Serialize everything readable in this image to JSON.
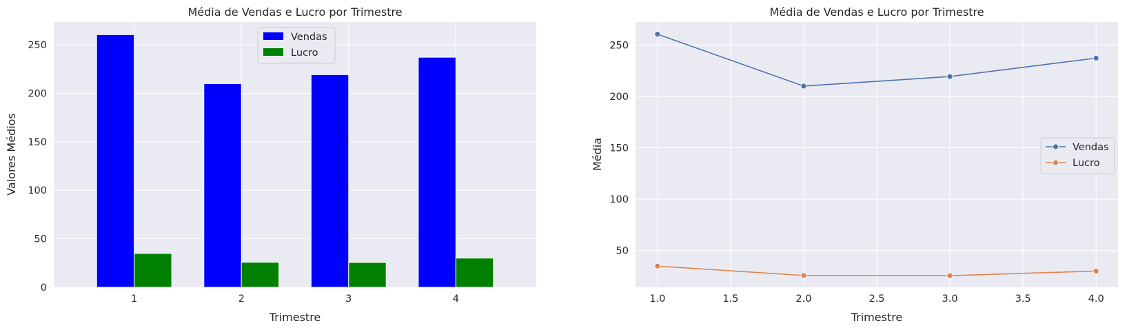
{
  "colors": {
    "axes_background": "#eaeaf2",
    "grid": "#ffffff",
    "text": "#262626"
  },
  "chart_data": [
    {
      "type": "bar",
      "title": "Média de Vendas e Lucro por Trimestre",
      "xlabel": "Trimestre",
      "ylabel": "Valores Médios",
      "categories": [
        "1",
        "2",
        "3",
        "4"
      ],
      "series": [
        {
          "name": "Vendas",
          "color": "#0000ff",
          "values": [
            260.5,
            210.0,
            219.3,
            237.2
          ]
        },
        {
          "name": "Lucro",
          "color": "#008000",
          "values": [
            34.9,
            25.8,
            25.6,
            30.1
          ]
        }
      ],
      "ylim": [
        0,
        273.5
      ],
      "yticks": [
        0,
        50,
        100,
        150,
        200,
        250
      ],
      "grid": true,
      "legend": "top-center"
    },
    {
      "type": "line",
      "title": "Média de Vendas e Lucro por Trimestre",
      "xlabel": "Trimestre",
      "ylabel": "Média",
      "x": [
        1.0,
        2.0,
        3.0,
        4.0
      ],
      "series": [
        {
          "name": "Vendas",
          "color": "#4c72b0",
          "values": [
            260.5,
            210.0,
            219.3,
            237.2
          ]
        },
        {
          "name": "Lucro",
          "color": "#dd8452",
          "values": [
            34.9,
            25.8,
            25.6,
            30.1
          ]
        }
      ],
      "xlim": [
        0.85,
        4.15
      ],
      "xticks": [
        "1.0",
        "1.5",
        "2.0",
        "2.5",
        "3.0",
        "3.5",
        "4.0"
      ],
      "ylim": [
        14.3,
        272.3
      ],
      "yticks": [
        50,
        100,
        150,
        200,
        250
      ],
      "grid": true,
      "legend": "center-right",
      "markers": true
    }
  ]
}
